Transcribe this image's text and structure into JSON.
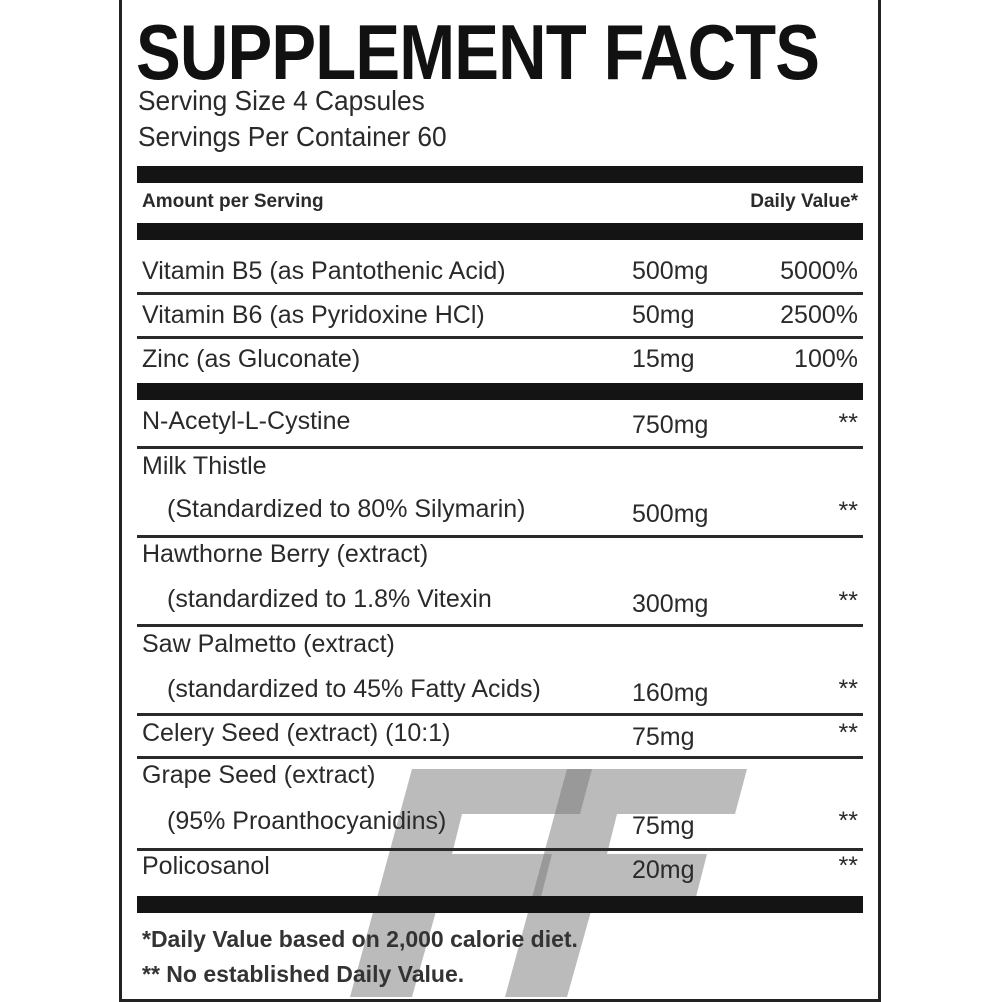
{
  "title": "SUPPLEMENT FACTS",
  "serving_size": "Serving Size 4 Capsules",
  "servings_per_container": "Servings Per Container 60",
  "header": {
    "amount": "Amount per Serving",
    "daily_value": "Daily Value*"
  },
  "vitamins": [
    {
      "name": "Vitamin B5 (as Pantothenic Acid)",
      "amount": "500mg",
      "dv": "5000%"
    },
    {
      "name": "Vitamin B6 (as Pyridoxine HCl)",
      "amount": "50mg",
      "dv": "2500%"
    },
    {
      "name": "Zinc (as Gluconate)",
      "amount": "15mg",
      "dv": "100%"
    }
  ],
  "ingredients": [
    {
      "name": "N-Acetyl-L-Cystine",
      "sub": "",
      "amount": "750mg",
      "dv": "**"
    },
    {
      "name": "Milk Thistle",
      "sub": "(Standardized to 80% Silymarin)",
      "amount": "500mg",
      "dv": "**"
    },
    {
      "name": "Hawthorne Berry (extract)",
      "sub": "(standardized to 1.8% Vitexin",
      "amount": "300mg",
      "dv": "**"
    },
    {
      "name": "Saw Palmetto (extract)",
      "sub": "(standardized to 45% Fatty Acids)",
      "amount": "160mg",
      "dv": "**"
    },
    {
      "name": "Celery Seed (extract) (10:1)",
      "sub": "",
      "amount": "75mg",
      "dv": "**"
    },
    {
      "name": "Grape Seed (extract)",
      "sub": "(95% Proanthocyanidins)",
      "amount": "75mg",
      "dv": "**"
    },
    {
      "name": "Policosanol",
      "sub": "",
      "amount": "20mg",
      "dv": "**"
    }
  ],
  "footnotes": [
    "*Daily Value based on 2,000 calorie diet.",
    "** No established Daily Value."
  ],
  "watermark": "FF"
}
